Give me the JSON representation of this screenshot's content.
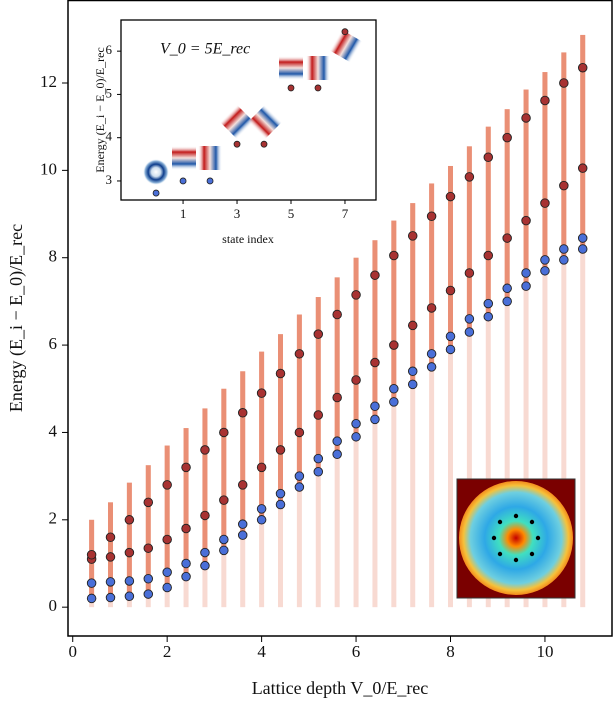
{
  "chart_data": [
    {
      "type": "scatter",
      "xlabel": "Lattice depth V_0/E_rec",
      "ylabel": "Energy (E_i − E_0)/E_rec",
      "xlim": [
        -0.1,
        11.42
      ],
      "ylim": [
        -0.66,
        13.9
      ],
      "xticks": [
        0,
        2,
        4,
        6,
        8,
        10
      ],
      "yticks": [
        0,
        2,
        4,
        6,
        8,
        10,
        12
      ],
      "x": [
        0.4,
        0.8,
        1.2,
        1.6,
        2.0,
        2.4,
        2.8,
        3.2,
        3.6,
        4.0,
        4.4,
        4.8,
        5.2,
        5.6,
        6.0,
        6.4,
        6.8,
        7.2,
        7.6,
        8.0,
        8.4,
        8.8,
        9.2,
        9.6,
        10.0,
        10.4,
        10.8
      ],
      "band_color": "#e8866a",
      "band_high": [
        2.0,
        2.4,
        2.85,
        3.25,
        3.7,
        4.1,
        4.55,
        5.0,
        5.4,
        5.85,
        6.25,
        6.7,
        7.1,
        7.55,
        8.0,
        8.4,
        8.85,
        9.25,
        9.7,
        10.1,
        10.55,
        11.0,
        11.4,
        11.85,
        12.25,
        12.7,
        13.1
      ],
      "series": [
        {
          "color": "#4a6fd8",
          "values": [
            0.2,
            0.22,
            0.25,
            0.3,
            0.45,
            0.7,
            0.95,
            1.3,
            1.65,
            2.0,
            2.35,
            2.75,
            3.1,
            3.5,
            3.9,
            4.3,
            4.7,
            5.1,
            5.5,
            5.9,
            6.3,
            6.65,
            7.0,
            7.35,
            7.7,
            7.95,
            8.2
          ]
        },
        {
          "color": "#4a6fd8",
          "values": [
            0.55,
            0.58,
            0.6,
            0.65,
            0.8,
            1.0,
            1.25,
            1.55,
            1.9,
            2.25,
            2.6,
            3.0,
            3.4,
            3.8,
            4.2,
            4.6,
            5.0,
            5.4,
            5.8,
            6.2,
            6.6,
            6.95,
            7.3,
            7.65,
            7.95,
            8.2,
            8.45
          ]
        },
        {
          "color": "#a83232",
          "values": [
            1.1,
            1.15,
            1.25,
            1.35,
            1.55,
            1.8,
            2.1,
            2.45,
            2.8,
            3.2,
            3.6,
            4.0,
            4.4,
            4.8,
            5.2,
            5.6,
            6.0,
            6.45,
            6.85,
            7.25,
            7.65,
            8.05,
            8.45,
            8.85,
            9.25,
            9.65,
            10.05
          ]
        },
        {
          "color": "#a83232",
          "values": [
            1.2,
            1.6,
            2.0,
            2.4,
            2.8,
            3.2,
            3.6,
            4.0,
            4.45,
            4.9,
            5.35,
            5.8,
            6.25,
            6.7,
            7.15,
            7.6,
            8.05,
            8.5,
            8.95,
            9.4,
            9.85,
            10.3,
            10.75,
            11.2,
            11.6,
            12.0,
            12.35
          ]
        }
      ]
    },
    {
      "type": "scatter",
      "annotation": "V_0 = 5E_rec",
      "xlabel": "state index",
      "ylabel": "Energy (E_i − E_0)/E_rec",
      "xlim": [
        -1.3,
        8.15
      ],
      "ylim": [
        2.56,
        6.72
      ],
      "xticks": [
        1,
        3,
        5,
        7
      ],
      "yticks": [
        3,
        4,
        5,
        6
      ],
      "x": [
        0,
        1,
        2,
        3,
        4,
        5,
        6,
        7
      ],
      "values": [
        2.72,
        3.0,
        3.0,
        3.85,
        3.85,
        5.15,
        5.15,
        6.45
      ],
      "colors": [
        "#4a6fd8",
        "#4a6fd8",
        "#4a6fd8",
        "#a83232",
        "#a83232",
        "#a83232",
        "#a83232",
        "#a83232"
      ]
    }
  ]
}
